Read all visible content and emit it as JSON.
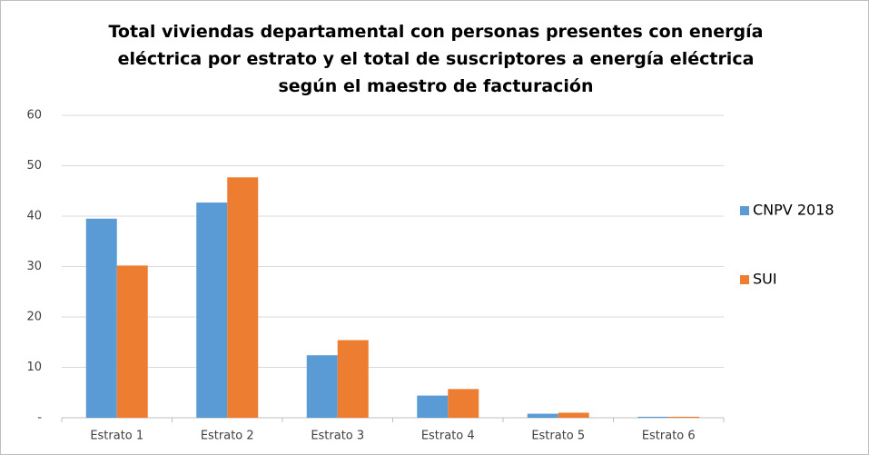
{
  "chart_data": {
    "type": "bar",
    "title": "Total viviendas departamental con personas presentes con energía eléctrica por estrato y el total de suscriptores a energía eléctrica según el maestro de facturación",
    "categories": [
      "Estrato 1",
      "Estrato 2",
      "Estrato 3",
      "Estrato 4",
      "Estrato 5",
      "Estrato 6"
    ],
    "series": [
      {
        "name": "CNPV 2018",
        "color": "#5b9bd5",
        "values": [
          39.5,
          42.7,
          12.4,
          4.4,
          0.8,
          0.2
        ]
      },
      {
        "name": "SUI",
        "color": "#ed7d31",
        "values": [
          30.2,
          47.7,
          15.4,
          5.7,
          1.0,
          0.2
        ]
      }
    ],
    "ylim": [
      0,
      60
    ],
    "yticks": [
      {
        "value": 0,
        "label": "-"
      },
      10,
      20,
      30,
      40,
      50,
      60
    ],
    "grid": true,
    "legend": "right"
  }
}
